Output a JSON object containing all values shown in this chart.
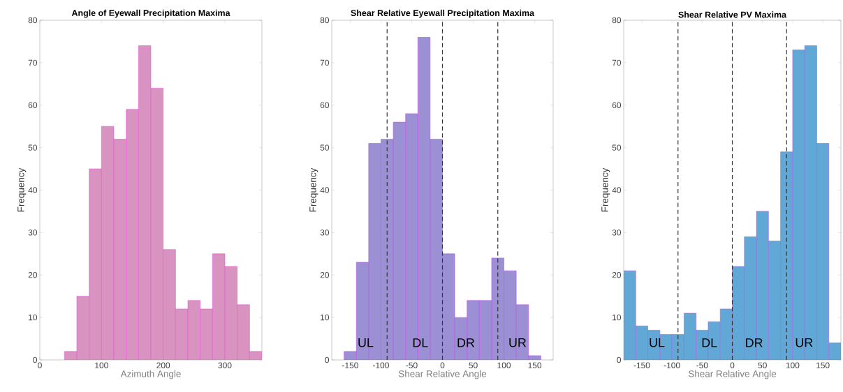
{
  "chart_data": [
    {
      "type": "histogram",
      "title": "Angle of Eyewall Precipitation Maxima",
      "xlabel": "Azimuth Angle",
      "ylabel": "Frequency",
      "color": "#d993c0",
      "bins": [
        40,
        60,
        80,
        100,
        120,
        140,
        160,
        180,
        200,
        220,
        240,
        260,
        280,
        300,
        320,
        340,
        360
      ],
      "values": [
        2,
        15,
        45,
        55,
        52,
        59,
        74,
        64,
        26,
        12,
        14,
        12,
        25,
        22,
        13,
        2
      ],
      "xlim": [
        0,
        360
      ],
      "xticks": [
        0,
        100,
        200,
        300
      ],
      "ylim": [
        0,
        80
      ],
      "yticks": [
        0,
        10,
        20,
        30,
        40,
        50,
        60,
        70,
        80
      ]
    },
    {
      "type": "histogram",
      "title": "Shear Relative Eyewall Precipitation Maxima",
      "xlabel": "Shear Relative Angle",
      "ylabel": "Frequency",
      "color": "#9b90d4",
      "bins": [
        -160,
        -140,
        -120,
        -100,
        -80,
        -60,
        -40,
        -20,
        0,
        20,
        40,
        60,
        80,
        100,
        120,
        140,
        160
      ],
      "values": [
        2,
        23,
        51,
        52,
        56,
        58,
        76,
        52,
        25,
        10,
        14,
        14,
        24,
        21,
        13,
        1
      ],
      "xlim": [
        -180,
        180
      ],
      "xticks": [
        -150,
        -100,
        -50,
        0,
        50,
        100,
        150
      ],
      "ylim": [
        0,
        80
      ],
      "yticks": [
        0,
        10,
        20,
        30,
        40,
        50,
        60,
        70,
        80
      ],
      "ref_lines": [
        {
          "axis": "x",
          "value": -90,
          "color": "#333333",
          "line_style": "dashed"
        },
        {
          "axis": "x",
          "value": 0,
          "color": "#333333",
          "line_style": "dashed"
        },
        {
          "axis": "x",
          "value": 90,
          "color": "#333333",
          "line_style": "dashed"
        }
      ],
      "annotations": [
        {
          "text": "UL",
          "x": -125,
          "y": 3
        },
        {
          "text": "DL",
          "x": -36,
          "y": 3
        },
        {
          "text": "DR",
          "x": 38,
          "y": 3
        },
        {
          "text": "UR",
          "x": 122,
          "y": 3
        }
      ]
    },
    {
      "type": "histogram",
      "title": "Shear Relative PV Maxima",
      "xlabel": "Shear Relative Angle",
      "ylabel": "Frequency",
      "color": "#62a8d6",
      "bins": [
        -180,
        -160,
        -140,
        -120,
        -100,
        -80,
        -60,
        -40,
        -20,
        0,
        20,
        40,
        60,
        80,
        100,
        120,
        140,
        160,
        180
      ],
      "values": [
        21,
        8,
        7,
        6,
        6,
        11,
        7,
        9,
        12,
        22,
        29,
        35,
        28,
        49,
        73,
        74,
        51,
        4
      ],
      "xlim": [
        -180,
        180
      ],
      "xticks": [
        -150,
        -100,
        -50,
        0,
        50,
        100,
        150
      ],
      "ylim": [
        0,
        80
      ],
      "yticks": [
        0,
        10,
        20,
        30,
        40,
        50,
        60,
        70,
        80
      ],
      "ref_lines": [
        {
          "axis": "x",
          "value": -90,
          "color": "#333333",
          "line_style": "dashed"
        },
        {
          "axis": "x",
          "value": 0,
          "color": "#333333",
          "line_style": "dashed"
        },
        {
          "axis": "x",
          "value": 90,
          "color": "#333333",
          "line_style": "dashed"
        }
      ],
      "annotations": [
        {
          "text": "UL",
          "x": -125,
          "y": 3
        },
        {
          "text": "DL",
          "x": -38,
          "y": 3
        },
        {
          "text": "DR",
          "x": 36,
          "y": 3
        },
        {
          "text": "UR",
          "x": 119,
          "y": 3
        }
      ]
    }
  ]
}
